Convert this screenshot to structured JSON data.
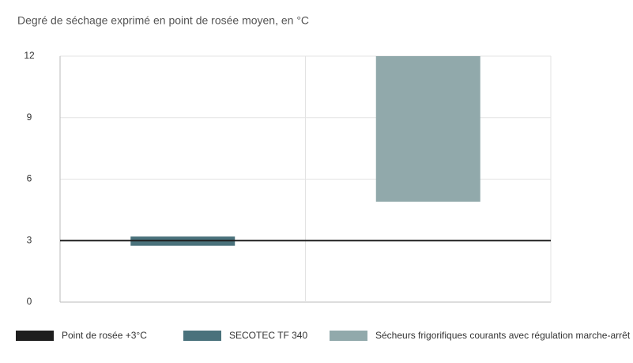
{
  "chart_data": {
    "type": "floating-bar",
    "title": "Degré de séchage exprimé en point de rosée moyen, en °C",
    "categories": [
      null,
      null
    ],
    "ylim": [
      0,
      12
    ],
    "yticks": [
      0,
      3,
      6,
      9,
      12
    ],
    "grid": true,
    "reference_line": {
      "name": "Point de rosée +3°C",
      "value": 3,
      "color": "#1e1e1e"
    },
    "series": [
      {
        "name": "SECOTEC TF 340",
        "color": "#4a727c",
        "low": [
          2.75,
          null
        ],
        "high": [
          3.2,
          null
        ]
      },
      {
        "name": "Sécheurs frigorifiques courants avec régulation marche-arrêt",
        "color": "#91a9ab",
        "low": [
          null,
          4.9
        ],
        "high": [
          null,
          12
        ]
      }
    ],
    "legend": "bottom"
  }
}
